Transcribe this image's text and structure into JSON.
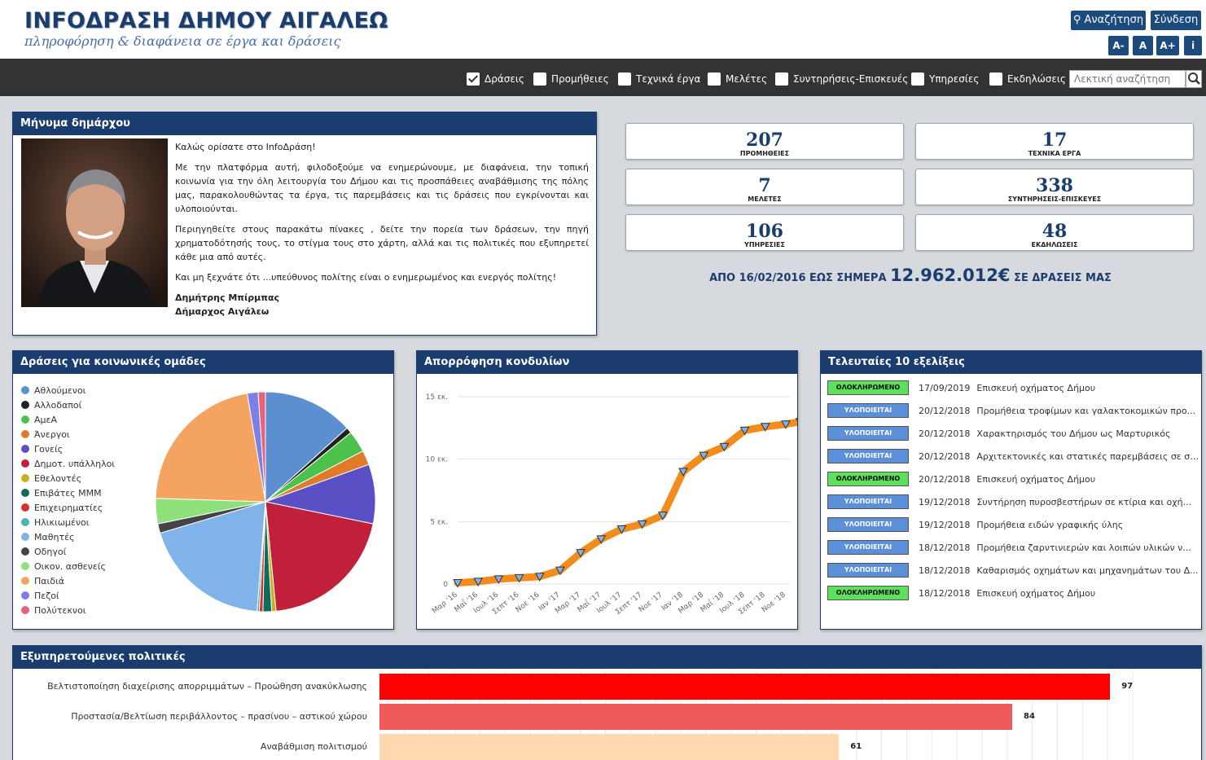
{
  "header": {
    "title": "INFOΔΡΑΣΗ ΔΗΜΟΥ ΑΙΓΑΛΕΩ",
    "subtitle": "πληροφόρηση & διαφάνεια σε έργα και δράσεις",
    "search_label": "Αναζήτηση",
    "login_label": "Σύνδεση",
    "font_minus": "A-",
    "font_normal": "A",
    "font_plus": "A+",
    "info": "i",
    "brand_color": "#1b3c6e"
  },
  "filters": {
    "items": [
      {
        "label": "Δράσεις",
        "checked": true
      },
      {
        "label": "Προμήθειες",
        "checked": false
      },
      {
        "label": "Τεχνικά έργα",
        "checked": false
      },
      {
        "label": "Μελέτες",
        "checked": false
      },
      {
        "label": "Συντηρήσεις-Επισκευές",
        "checked": false
      },
      {
        "label": "Υπηρεσίες",
        "checked": false
      },
      {
        "label": "Εκδηλώσεις",
        "checked": false
      }
    ],
    "search_placeholder": "Λεκτική αναζήτηση"
  },
  "mayor": {
    "heading": "Μήνυμα δημάρχου",
    "welcome": "Καλώς ορίσατε στο InfoΔράση!",
    "p1": "Με την πλατφόρμα αυτή, φιλοδοξούμε να ενημερώνουμε, με διαφάνεια, την τοπική κοινωνία για την όλη λειτουργία του Δήμου και τις προσπάθειες αναβάθμισης της πόλης μας, παρακολουθώντας τα έργα, τις παρεμβάσεις και τις δράσεις που εγκρίνονται και υλοποιούνται.",
    "p2": "Περιηγηθείτε στους παρακάτω πίνακες , δείτε την πορεία των δράσεων, την πηγή χρηματοδότησής τους, το στίγμα τους στο χάρτη, αλλά και τις πολιτικές που εξυπηρετεί κάθε μια από αυτές.",
    "p3": "Και μη ξεχνάτε ότι ...υπεύθυνος πολίτης είναι ο ενημερωμένος και ενεργός πολίτης!",
    "name": "Δημήτρης Μπίρμπας",
    "role": "Δήμαρχος Αιγάλεω"
  },
  "stats": [
    {
      "value": "207",
      "label": "ΠΡΟΜΗΘΕΙΕΣ"
    },
    {
      "value": "17",
      "label": "ΤΕΧΝΙΚΑ ΕΡΓΑ"
    },
    {
      "value": "7",
      "label": "ΜΕΛΕΤΕΣ"
    },
    {
      "value": "338",
      "label": "ΣΥΝΤΗΡΗΣΕΙΣ-ΕΠΙΣΚΕΥΕΣ"
    },
    {
      "value": "106",
      "label": "ΥΠΗΡΕΣΙΕΣ"
    },
    {
      "value": "48",
      "label": "ΕΚΔΗΛΩΣΕΙΣ"
    }
  ],
  "total": {
    "prefix": "ΑΠΟ 16/02/2016 ΕΩΣ ΣΗΜΕΡΑ",
    "amount": "12.962.012€",
    "suffix": "ΣΕ ΔΡΑΣΕΙΣ ΜΑΣ"
  },
  "groups_panel": {
    "heading": "Δράσεις για κοινωνικές ομάδες"
  },
  "absorption_panel": {
    "heading": "Απορρόφηση κονδυλίων"
  },
  "evolutions": {
    "heading": "Τελευταίες 10 εξελίξεις",
    "status_colors": {
      "ΟΛΟΚΛΗΡΩΜΕΝΟ": "#5ee05e",
      "ΥΛΟΠΟΙΕΙΤΑΙ": "#5b8fd8"
    },
    "items": [
      {
        "status": "ΟΛΟΚΛΗΡΩΜΕΝΟ",
        "date": "17/09/2019",
        "title": "Επισκευή οχήματος Δήμου"
      },
      {
        "status": "ΥΛΟΠΟΙΕΙΤΑΙ",
        "date": "20/12/2018",
        "title": "Προμήθεια τροφίμων και γαλακτοκομικών προ..."
      },
      {
        "status": "ΥΛΟΠΟΙΕΙΤΑΙ",
        "date": "20/12/2018",
        "title": "Χαρακτηρισμός του Δήμου ως Μαρτυρικός"
      },
      {
        "status": "ΥΛΟΠΟΙΕΙΤΑΙ",
        "date": "20/12/2018",
        "title": "Αρχιτεκτονικές και στατικές παρεμβάσεις σε σχ..."
      },
      {
        "status": "ΟΛΟΚΛΗΡΩΜΕΝΟ",
        "date": "20/12/2018",
        "title": "Επισκευή οχήματος Δήμου"
      },
      {
        "status": "ΥΛΟΠΟΙΕΙΤΑΙ",
        "date": "19/12/2018",
        "title": "Συντήρηση πυροσβεστήρων σε κτίρια και οχή..."
      },
      {
        "status": "ΥΛΟΠΟΙΕΙΤΑΙ",
        "date": "19/12/2018",
        "title": "Προμήθεια ειδών γραφικής ύλης"
      },
      {
        "status": "ΥΛΟΠΟΙΕΙΤΑΙ",
        "date": "18/12/2018",
        "title": "Προμήθεια ζαρντινιερών και λοιπών υλικών ν..."
      },
      {
        "status": "ΥΛΟΠΟΙΕΙΤΑΙ",
        "date": "18/12/2018",
        "title": "Καθαρισμός οχημάτων και μηχανημάτων του Δ..."
      },
      {
        "status": "ΟΛΟΚΛΗΡΩΜΕΝΟ",
        "date": "18/12/2018",
        "title": "Επισκευή οχήματος Δήμου"
      }
    ]
  },
  "policies_panel": {
    "heading": "Εξυπηρετούμενες πολιτικές"
  },
  "chart_data": [
    {
      "type": "pie",
      "title": "",
      "legend_position": "left",
      "categories": [
        "Αθλούμενοι",
        "Αλλοδαποί",
        "ΑμεΑ",
        "Άνεργοι",
        "Γονείς",
        "Δημοτ. υπάλληλοι",
        "Εθελοντές",
        "Επιβάτες ΜΜΜ",
        "Επιχειρηματίες",
        "Ηλικιωμένοι",
        "Μαθητές",
        "Οδηγοί",
        "Οικον. ασθενείς",
        "Παιδιά",
        "Πεζοί",
        "Πολύτεκνοι"
      ],
      "colors": [
        "#5b8fd0",
        "#222222",
        "#4cc24c",
        "#e07b2a",
        "#5a4fc4",
        "#c0203a",
        "#c9b020",
        "#0f6b5e",
        "#d82f2f",
        "#4ab8b0",
        "#7fb3ea",
        "#444444",
        "#8de07a",
        "#f4a460",
        "#7b7fe6",
        "#e8637a"
      ],
      "values": [
        12.5,
        0.8,
        3.0,
        2.0,
        8.2,
        19.0,
        0.6,
        1.2,
        0.5,
        0.3,
        18.0,
        1.3,
        3.5,
        20.5,
        1.5,
        1.0
      ]
    },
    {
      "type": "line",
      "title": "",
      "ylabel": "",
      "ylim": [
        0,
        15
      ],
      "y_ticks": [
        "0",
        "5 εκ.",
        "10 εκ.",
        "15 εκ."
      ],
      "x_ticks": [
        "Μαρ '16",
        "Μαΐ '16",
        "Ιουλ '16",
        "Σεπτ '16",
        "Νοε '16",
        "Ιαν '17",
        "Μαρ '17",
        "Μαΐ '17",
        "Ιουλ '17",
        "Σεπτ '17",
        "Νοε '17",
        "Ιαν '18",
        "Μαρ '18",
        "Μαΐ '18",
        "Ιουλ '18",
        "Σεπτ '18",
        "Νοε '18"
      ],
      "series": [
        {
          "color": "#f28c1c",
          "x": [
            0,
            1,
            2,
            3,
            4,
            5,
            6,
            7,
            8,
            9,
            10,
            11,
            12,
            13,
            14,
            15,
            16,
            16.7
          ],
          "values": [
            0.1,
            0.2,
            0.4,
            0.5,
            0.6,
            1.1,
            2.5,
            3.6,
            4.4,
            4.8,
            5.5,
            9.0,
            10.3,
            11.0,
            12.3,
            12.6,
            12.8,
            13.0
          ]
        }
      ]
    },
    {
      "type": "bar",
      "orientation": "horizontal",
      "title": "",
      "categories": [
        "Βελτιστοποίηση διαχείρισης απορριμμάτων – Προώθηση ανακύκλωσης",
        "Προστασία/Βελτίωση περιβάλλοντος – πρασίνου – αστικού χώρου",
        "Αναβάθμιση πολιτισμού"
      ],
      "values": [
        97,
        84,
        61
      ],
      "colors": [
        "#ff0000",
        "#f05a5a",
        "#ffd8b0"
      ],
      "xlim": [
        0,
        100
      ]
    }
  ]
}
